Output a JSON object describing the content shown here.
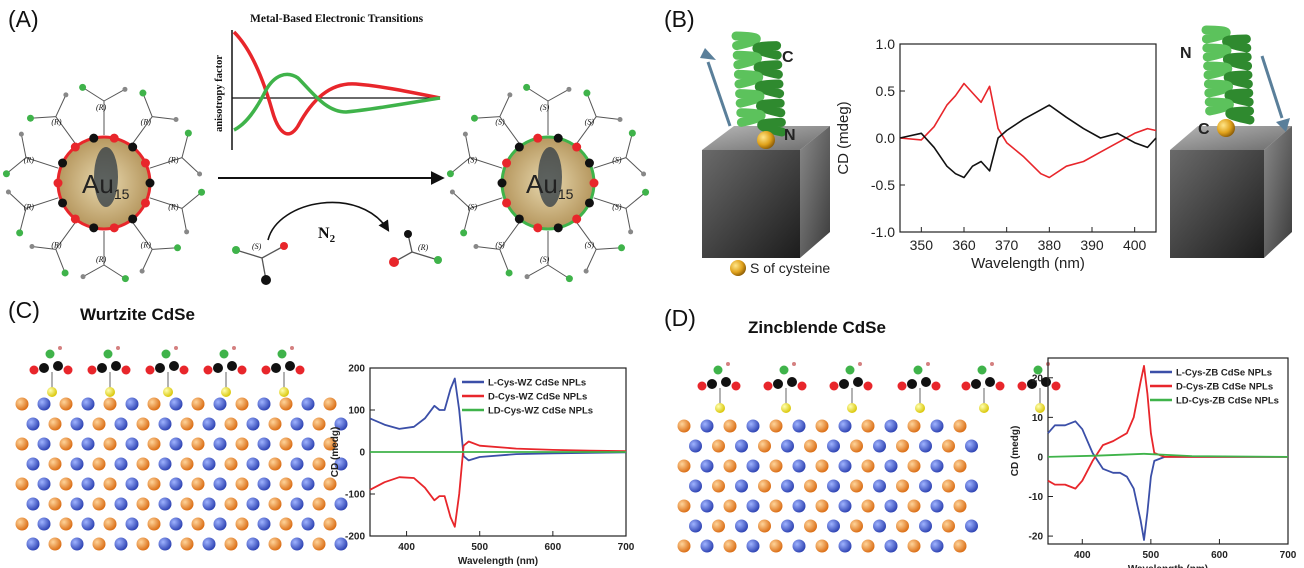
{
  "panels": {
    "a": {
      "label": "(A)",
      "chart_title": "Metal-Based Electronic Transitions",
      "ylabel": "anisotropy factor",
      "cluster": "Au",
      "cluster_sub": "15",
      "gas": "N",
      "gas_sub": "2",
      "ligand_r": "(R)",
      "ligand_s": "(S)",
      "colors": {
        "red": "#e8262b",
        "green": "#3fb34a"
      }
    },
    "b": {
      "label": "(B)",
      "helix_left_top": "C",
      "helix_left_bottom": "N",
      "helix_right_top": "N",
      "helix_right_bottom": "C",
      "sulfur_legend": "S of cysteine"
    },
    "c": {
      "label": "(C)",
      "title": "Wurtzite CdSe"
    },
    "d": {
      "label": "(D)",
      "title": "Zincblende CdSe"
    }
  },
  "chart_data": [
    {
      "id": "B",
      "type": "line",
      "xlabel": "Wavelength (nm)",
      "ylabel": "CD (mdeg)",
      "xlim": [
        345,
        405
      ],
      "ylim": [
        -1.0,
        1.0
      ],
      "xticks": [
        350,
        360,
        370,
        380,
        390,
        400
      ],
      "yticks": [
        -1.0,
        -0.5,
        0.0,
        0.5,
        1.0
      ],
      "ytick_labels": [
        "-1.0",
        "-0.5",
        "0.0",
        "0.5",
        "1.0"
      ],
      "series": [
        {
          "color": "#e8262b",
          "x": [
            345,
            350,
            353,
            356,
            358,
            360,
            362,
            364,
            366,
            368,
            370,
            374,
            378,
            380,
            384,
            388,
            392,
            396,
            400,
            403,
            405
          ],
          "y": [
            0.0,
            -0.02,
            0.12,
            0.35,
            0.45,
            0.58,
            0.48,
            0.38,
            0.55,
            0.1,
            -0.05,
            -0.2,
            -0.38,
            -0.42,
            -0.3,
            -0.25,
            -0.15,
            -0.05,
            0.05,
            0.1,
            0.08
          ]
        },
        {
          "color": "#111111",
          "x": [
            345,
            350,
            353,
            356,
            358,
            360,
            362,
            364,
            366,
            368,
            370,
            374,
            378,
            380,
            384,
            388,
            392,
            396,
            400,
            403,
            405
          ],
          "y": [
            0.0,
            0.05,
            -0.1,
            -0.3,
            -0.38,
            -0.42,
            -0.3,
            -0.25,
            -0.35,
            0.0,
            0.08,
            0.2,
            0.3,
            0.35,
            0.22,
            0.1,
            0.0,
            0.05,
            -0.05,
            -0.1,
            0.0
          ]
        }
      ]
    },
    {
      "id": "C",
      "type": "line",
      "xlabel": "Wavelength (nm)",
      "ylabel": "CD (medg)",
      "xlim": [
        350,
        700
      ],
      "ylim": [
        -200,
        200
      ],
      "xticks": [
        400,
        500,
        600,
        700
      ],
      "yticks": [
        -200,
        -100,
        0,
        100,
        200
      ],
      "ytick_labels": [
        "-200",
        "-100",
        "0",
        "100",
        "200"
      ],
      "legend_position": "top-right",
      "series": [
        {
          "name": "L-Cys-WZ CdSe NPLs",
          "color": "#3b4fa8",
          "x": [
            350,
            370,
            390,
            410,
            425,
            438,
            445,
            452,
            460,
            466,
            472,
            478,
            485,
            500,
            550,
            600,
            650,
            700
          ],
          "y": [
            80,
            65,
            55,
            60,
            80,
            110,
            100,
            100,
            150,
            175,
            100,
            -10,
            -20,
            -12,
            -5,
            -3,
            -2,
            -1
          ]
        },
        {
          "name": "D-Cys-WZ CdSe NPLs",
          "color": "#e8262b",
          "x": [
            350,
            370,
            390,
            410,
            425,
            438,
            445,
            452,
            460,
            466,
            472,
            478,
            485,
            500,
            550,
            600,
            650,
            700
          ],
          "y": [
            -90,
            -72,
            -60,
            -62,
            -85,
            -115,
            -105,
            -105,
            -155,
            -178,
            -100,
            15,
            25,
            15,
            8,
            5,
            3,
            2
          ]
        },
        {
          "name": "LD-Cys-WZ CdSe NPLs",
          "color": "#3fb34a",
          "x": [
            350,
            450,
            550,
            700
          ],
          "y": [
            0,
            0,
            0,
            0
          ]
        }
      ]
    },
    {
      "id": "D",
      "type": "line",
      "xlabel": "Wavelength (nm)",
      "ylabel": "CD (medg)",
      "xlim": [
        350,
        700
      ],
      "ylim": [
        -22,
        25
      ],
      "xticks": [
        400,
        500,
        600,
        700
      ],
      "yticks": [
        -20,
        -10,
        0,
        10,
        20
      ],
      "ytick_labels": [
        "-20",
        "-10",
        "0",
        "10",
        "20"
      ],
      "legend_position": "top-right",
      "series": [
        {
          "name": "L-Cys-ZB CdSe NPLs",
          "color": "#3b4fa8",
          "x": [
            350,
            360,
            375,
            390,
            400,
            415,
            430,
            445,
            455,
            465,
            475,
            485,
            490,
            495,
            500,
            505,
            520,
            560,
            600,
            650,
            700
          ],
          "y": [
            6,
            8,
            8,
            9,
            7,
            1,
            -3,
            -4,
            -4,
            -5,
            -8,
            -16,
            -21,
            -14,
            -5,
            -1,
            0,
            0,
            0,
            0,
            0
          ]
        },
        {
          "name": "D-Cys-ZB CdSe NPLs",
          "color": "#e8262b",
          "x": [
            350,
            360,
            375,
            390,
            400,
            415,
            430,
            445,
            455,
            465,
            475,
            485,
            490,
            495,
            500,
            505,
            520,
            560,
            600,
            650,
            700
          ],
          "y": [
            -6,
            -7,
            -7,
            -8,
            -6,
            -1,
            3,
            4,
            5,
            6,
            10,
            19,
            23,
            16,
            6,
            1,
            0,
            0,
            0,
            0,
            0
          ]
        },
        {
          "name": "LD-Cys-ZB CdSe NPLs",
          "color": "#3fb34a",
          "x": [
            350,
            420,
            490,
            560,
            700
          ],
          "y": [
            0,
            0.3,
            0.8,
            0.2,
            0
          ]
        }
      ]
    }
  ]
}
